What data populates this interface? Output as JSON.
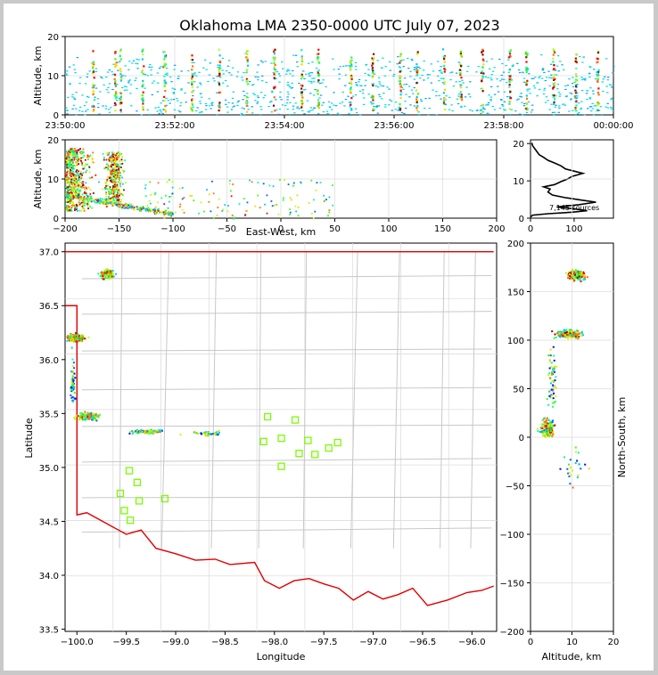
{
  "figure": {
    "title": "Oklahoma LMA 2350-0000 UTC July 07, 2023"
  },
  "chart_data": [
    {
      "panel": "time-altitude",
      "type": "scatter",
      "ylabel": "Altitude, km",
      "xlabel": "",
      "ylim": [
        0,
        20
      ],
      "y_ticks": [
        "0",
        "10",
        "20"
      ],
      "x_ticks": [
        "23:50:00",
        "23:52:00",
        "23:54:00",
        "23:56:00",
        "23:58:00",
        "00:00:00"
      ],
      "description_points": "vertical streaks of sources at flash times, colored by time",
      "streak_minutes": [
        0.5,
        0.9,
        1.0,
        1.4,
        1.8,
        2.3,
        2.8,
        3.3,
        3.8,
        4.3,
        4.6,
        5.2,
        5.6,
        6.1,
        6.4,
        6.9,
        7.2,
        7.6,
        8.1,
        8.4,
        8.9,
        9.3,
        9.7
      ]
    },
    {
      "panel": "east-west-altitude",
      "type": "scatter",
      "xlabel": "East-West, km",
      "ylabel": "Altitude, km",
      "xlim": [
        -200,
        200
      ],
      "ylim": [
        0,
        20
      ],
      "x_ticks": [
        "−200",
        "−150",
        "−100",
        "−50",
        "0",
        "50",
        "100",
        "150",
        "200"
      ],
      "y_ticks": [
        "0",
        "10",
        "20"
      ]
    },
    {
      "panel": "altitude-histogram",
      "type": "line",
      "xlim": [
        0,
        190
      ],
      "ylim": [
        0,
        21
      ],
      "x_ticks": [
        "0",
        "100"
      ],
      "y_ticks": [
        "0",
        "10",
        "20"
      ],
      "annotation": "7,145 sources",
      "profile": [
        [
          0,
          0.3
        ],
        [
          5,
          0.8
        ],
        [
          40,
          1.2
        ],
        [
          95,
          1.6
        ],
        [
          130,
          2.0
        ],
        [
          100,
          2.5
        ],
        [
          60,
          3.0
        ],
        [
          110,
          3.6
        ],
        [
          150,
          4.3
        ],
        [
          120,
          4.8
        ],
        [
          80,
          5.5
        ],
        [
          50,
          6.2
        ],
        [
          40,
          7.0
        ],
        [
          45,
          7.8
        ],
        [
          30,
          8.4
        ],
        [
          55,
          9.0
        ],
        [
          70,
          9.8
        ],
        [
          85,
          10.5
        ],
        [
          95,
          11.2
        ],
        [
          120,
          12.0
        ],
        [
          100,
          12.6
        ],
        [
          80,
          13.2
        ],
        [
          70,
          14.0
        ],
        [
          55,
          14.8
        ],
        [
          40,
          15.5
        ],
        [
          30,
          16.3
        ],
        [
          20,
          17.0
        ],
        [
          15,
          17.8
        ],
        [
          10,
          18.6
        ],
        [
          5,
          19.4
        ],
        [
          3,
          20.2
        ]
      ]
    },
    {
      "panel": "map",
      "type": "scatter",
      "xlabel": "Longitude",
      "ylabel": "Latitude",
      "xlim": [
        -100.12,
        -95.75
      ],
      "ylim": [
        33.48,
        37.08
      ],
      "x_ticks": [
        "−100.0",
        "−99.5",
        "−99.0",
        "−98.5",
        "−98.0",
        "−97.5",
        "−97.0",
        "−96.5",
        "−96.0"
      ],
      "y_ticks": [
        "33.5",
        "34.0",
        "34.5",
        "35.0",
        "35.5",
        "36.0",
        "36.5",
        "37.0"
      ],
      "stations": [
        [
          -98.07,
          35.47
        ],
        [
          -97.79,
          35.44
        ],
        [
          -97.93,
          35.27
        ],
        [
          -97.66,
          35.25
        ],
        [
          -97.36,
          35.23
        ],
        [
          -98.11,
          35.24
        ],
        [
          -97.75,
          35.13
        ],
        [
          -97.59,
          35.12
        ],
        [
          -97.45,
          35.18
        ],
        [
          -97.93,
          35.01
        ],
        [
          -99.47,
          34.97
        ],
        [
          -99.39,
          34.86
        ],
        [
          -99.56,
          34.76
        ],
        [
          -99.37,
          34.69
        ],
        [
          -99.11,
          34.71
        ],
        [
          -99.52,
          34.6
        ],
        [
          -99.46,
          34.51
        ]
      ]
    },
    {
      "panel": "altitude-north-south",
      "type": "scatter",
      "xlabel": "Altitude, km",
      "ylabel": "North-South, km",
      "xlim": [
        0,
        20
      ],
      "ylim": [
        -200,
        200
      ],
      "x_ticks": [
        "0",
        "10",
        "20"
      ],
      "y_ticks": [
        "−200",
        "−150",
        "−100",
        "−50",
        "0",
        "50",
        "100",
        "150",
        "200"
      ]
    }
  ]
}
